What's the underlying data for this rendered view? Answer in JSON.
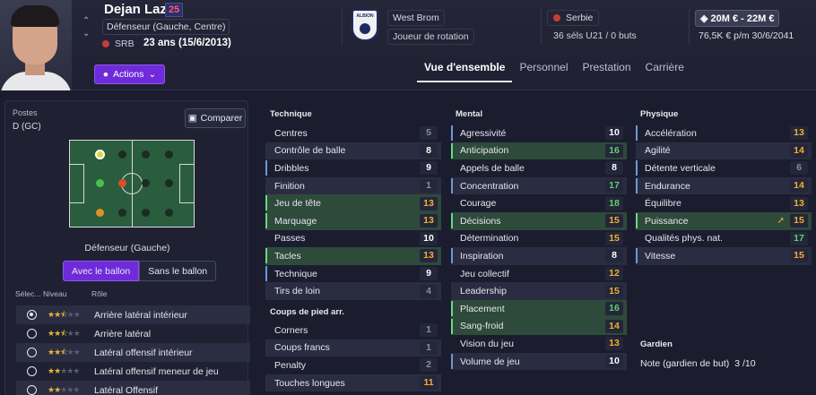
{
  "player": {
    "name": "Dejan Lazić",
    "number": "25",
    "position": "Défenseur (Gauche, Centre)",
    "nationality_code": "SRB",
    "age": "23 ans (15/6/2013)",
    "actions_label": "Actions"
  },
  "club": {
    "name": "West Brom",
    "role": "Joueur de rotation",
    "crest_text": "ALBION"
  },
  "nation": {
    "name": "Serbie",
    "caps": "36 séls U21 / 0 buts"
  },
  "contract": {
    "value": "20M € - 22M €",
    "wage": "76,5K € p/m 30/6/2041"
  },
  "tabs": [
    {
      "label": "Vue d'ensemble",
      "active": true
    },
    {
      "label": "Personnel",
      "active": false
    },
    {
      "label": "Prestation",
      "active": false
    },
    {
      "label": "Carrière",
      "active": false
    }
  ],
  "positions": {
    "label": "Postes",
    "value": "D (GC)",
    "compare_label": "Comparer",
    "selected_position": "Défenseur (Gauche)",
    "toggle_on": "Avec le ballon",
    "toggle_off": "Sans le ballon"
  },
  "roles_table": {
    "headers": {
      "select": "Sélec...",
      "level": "Niveau",
      "role": "Rôle"
    },
    "roles": [
      {
        "name": "Arrière latéral intérieur",
        "stars": 2.5,
        "selected": true
      },
      {
        "name": "Arrière latéral",
        "stars": 2.5,
        "selected": false
      },
      {
        "name": "Latéral offensif intérieur",
        "stars": 2.5,
        "selected": false
      },
      {
        "name": "Latéral offensif meneur de jeu",
        "stars": 2.0,
        "selected": false
      },
      {
        "name": "Latéral Offensif",
        "stars": 2.0,
        "selected": false
      }
    ]
  },
  "technique": {
    "title": "Technique",
    "items": [
      {
        "name": "Centres",
        "value": "5"
      },
      {
        "name": "Contrôle de balle",
        "value": "8"
      },
      {
        "name": "Dribbles",
        "value": "9"
      },
      {
        "name": "Finition",
        "value": "1"
      },
      {
        "name": "Jeu de tête",
        "value": "13"
      },
      {
        "name": "Marquage",
        "value": "13"
      },
      {
        "name": "Passes",
        "value": "10"
      },
      {
        "name": "Tacles",
        "value": "13"
      },
      {
        "name": "Technique",
        "value": "9"
      },
      {
        "name": "Tirs de loin",
        "value": "4"
      }
    ]
  },
  "set_pieces": {
    "title": "Coups de pied arr.",
    "items": [
      {
        "name": "Corners",
        "value": "1"
      },
      {
        "name": "Coups francs",
        "value": "1"
      },
      {
        "name": "Penalty",
        "value": "2"
      },
      {
        "name": "Touches longues",
        "value": "11"
      }
    ]
  },
  "mental": {
    "title": "Mental",
    "items": [
      {
        "name": "Agressivité",
        "value": "10"
      },
      {
        "name": "Anticipation",
        "value": "16"
      },
      {
        "name": "Appels de balle",
        "value": "8"
      },
      {
        "name": "Concentration",
        "value": "17"
      },
      {
        "name": "Courage",
        "value": "18"
      },
      {
        "name": "Décisions",
        "value": "15"
      },
      {
        "name": "Détermination",
        "value": "15"
      },
      {
        "name": "Inspiration",
        "value": "8"
      },
      {
        "name": "Jeu collectif",
        "value": "12"
      },
      {
        "name": "Leadership",
        "value": "15"
      },
      {
        "name": "Placement",
        "value": "16"
      },
      {
        "name": "Sang-froid",
        "value": "14"
      },
      {
        "name": "Vision du jeu",
        "value": "13"
      },
      {
        "name": "Volume de jeu",
        "value": "10"
      }
    ]
  },
  "physique": {
    "title": "Physique",
    "items": [
      {
        "name": "Accélération",
        "value": "13"
      },
      {
        "name": "Agilité",
        "value": "14"
      },
      {
        "name": "Détente verticale",
        "value": "6"
      },
      {
        "name": "Endurance",
        "value": "14"
      },
      {
        "name": "Équilibre",
        "value": "13"
      },
      {
        "name": "Puissance",
        "value": "15"
      },
      {
        "name": "Qualités phys. nat.",
        "value": "17"
      },
      {
        "name": "Vitesse",
        "value": "15"
      }
    ]
  },
  "goalkeeper": {
    "title": "Gardien",
    "rating_label": "Note (gardien de but)",
    "rating_value": "3 /10"
  }
}
